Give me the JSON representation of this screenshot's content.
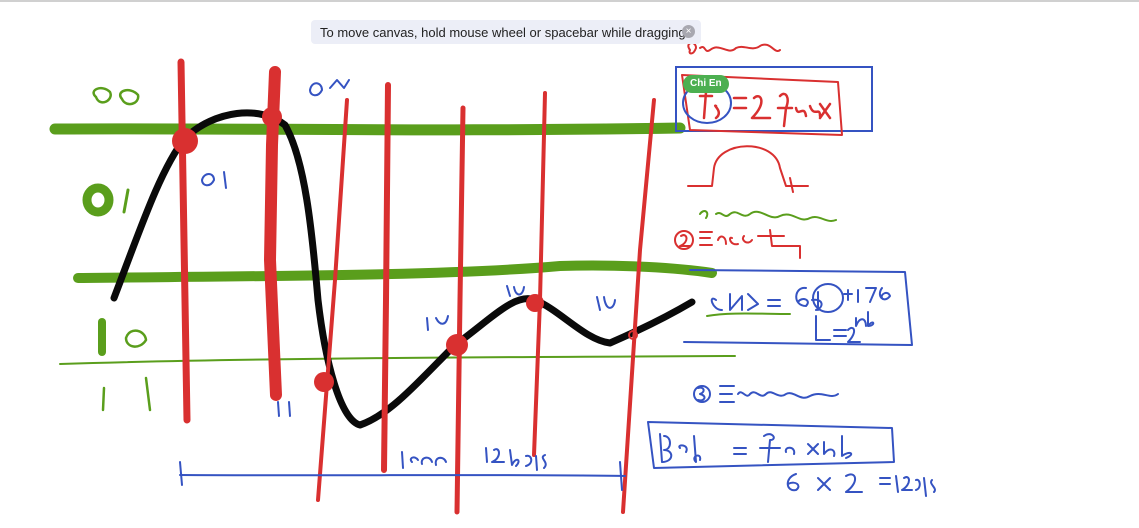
{
  "canvas": {
    "hint_text": "To move canvas, hold mouse wheel or spacebar while dragging",
    "close_glyph": "×",
    "user_badge": "Chi En",
    "ink_colors": {
      "green": "#5a9e1c",
      "red": "#d93030",
      "blue": "#3553c2",
      "black": "#0a0a0a"
    }
  }
}
